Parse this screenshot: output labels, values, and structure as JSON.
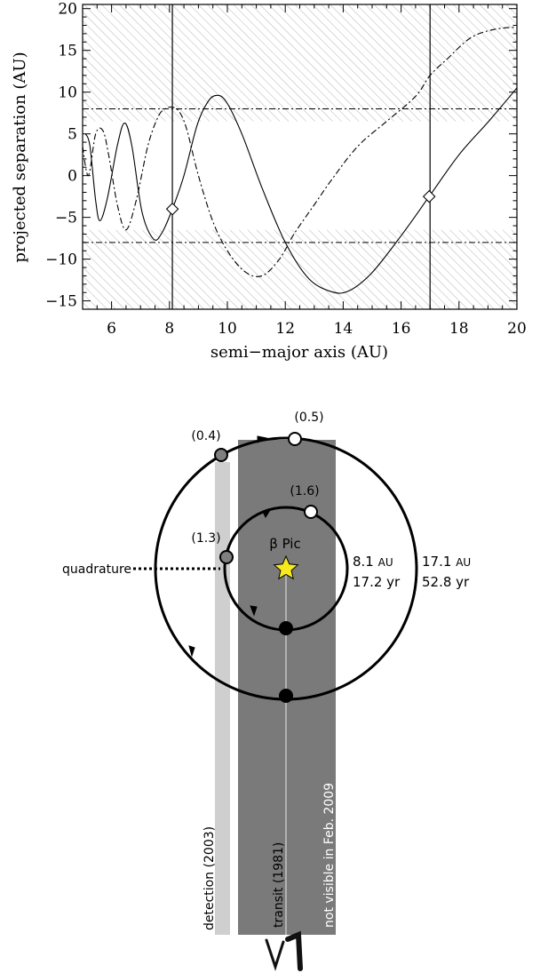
{
  "chart_data": {
    "type": "line",
    "xlabel": "semi−major axis (AU)",
    "ylabel": "projected separation (AU)",
    "xlim": [
      5,
      20
    ],
    "ylim": [
      -16,
      20.5
    ],
    "x_ticks": [
      6,
      8,
      10,
      12,
      14,
      16,
      18,
      20
    ],
    "y_ticks": [
      20,
      15,
      10,
      5,
      0,
      -5,
      -10,
      -15
    ],
    "grid": false,
    "x_minor_ticks_per_major": 4,
    "y_minor_ticks_per_major": 5,
    "excluded_regions": [
      {
        "from": 6.5,
        "to": 20.5,
        "pattern": "diagonal-hatch"
      },
      {
        "from": -16,
        "to": -6.5,
        "pattern": "diagonal-hatch"
      }
    ],
    "series": [
      {
        "style": "solid",
        "x": [
          5.1,
          5.25,
          5.45,
          5.6,
          5.85,
          6.2,
          6.45,
          6.7,
          7.05,
          7.45,
          7.75,
          8.1,
          8.5,
          8.95,
          9.3,
          9.6,
          9.95,
          10.5,
          11.2,
          12.0,
          12.8,
          13.6,
          14.2,
          15.0,
          16.0,
          16.97,
          18.0,
          19.0,
          20.0
        ],
        "y": [
          5,
          3.6,
          -3.0,
          -5.4,
          -2.8,
          3.6,
          6.3,
          3.6,
          -4.3,
          -7.6,
          -6.8,
          -4.0,
          0.0,
          6.0,
          8.7,
          9.6,
          8.9,
          5.0,
          -1.5,
          -8.0,
          -12.3,
          -13.9,
          -13.8,
          -11.6,
          -7.2,
          -2.5,
          2.5,
          6.4,
          10.5
        ]
      },
      {
        "style": "dash-dot",
        "x": [
          5.0,
          5.2,
          5.45,
          5.7,
          5.9,
          6.2,
          6.5,
          6.85,
          7.25,
          7.6,
          7.85,
          8.1,
          8.35,
          8.6,
          9.0,
          9.5,
          10.0,
          10.6,
          11.2,
          11.8,
          12.3,
          13.0,
          13.6,
          14.5,
          15.5,
          16.5,
          17.0,
          17.6,
          18.4,
          19.2,
          20.0
        ],
        "y": [
          3.5,
          0.0,
          5.0,
          5.4,
          2.5,
          -3.5,
          -6.5,
          -3.0,
          3.5,
          7.0,
          8.0,
          8.2,
          7.6,
          5.5,
          0.0,
          -5.5,
          -9.0,
          -11.5,
          -12.0,
          -10.0,
          -7.0,
          -3.5,
          -0.5,
          3.5,
          6.5,
          9.5,
          12.0,
          14.0,
          16.5,
          17.5,
          17.8
        ]
      }
    ],
    "reference_lines": {
      "vertical_x": [
        8.1,
        17.0
      ],
      "horizontal_dashdot_y": [
        8.0,
        -8.0
      ]
    },
    "markers": [
      {
        "shape": "diamond",
        "x": 8.1,
        "y": -4.0
      },
      {
        "shape": "diamond",
        "x": 16.97,
        "y": -2.5
      }
    ]
  },
  "diagram": {
    "star_label": "β Pic",
    "inner_orbit": {
      "distance_value": "8.1",
      "distance_unit": "AU",
      "period": "17.2 yr"
    },
    "outer_orbit": {
      "distance_value": "17.1",
      "distance_unit": "AU",
      "period": "52.8 yr"
    },
    "phase_labels": {
      "outer_detect": "(0.4)",
      "outer_top": "(0.5)",
      "inner_top": "(1.6)",
      "inner_detect": "(1.3)"
    },
    "quadrature_label": "quadrature",
    "band_labels": {
      "detection": "detection (2003)",
      "transit": "transit (1981)",
      "not_visible": "not visible in Feb. 2009"
    },
    "colors": {
      "light_band": "#cfcfcf",
      "dark_band": "#7a7a7a",
      "star": "#f6ea1e",
      "grey_dot": "#7f7f7f"
    }
  }
}
